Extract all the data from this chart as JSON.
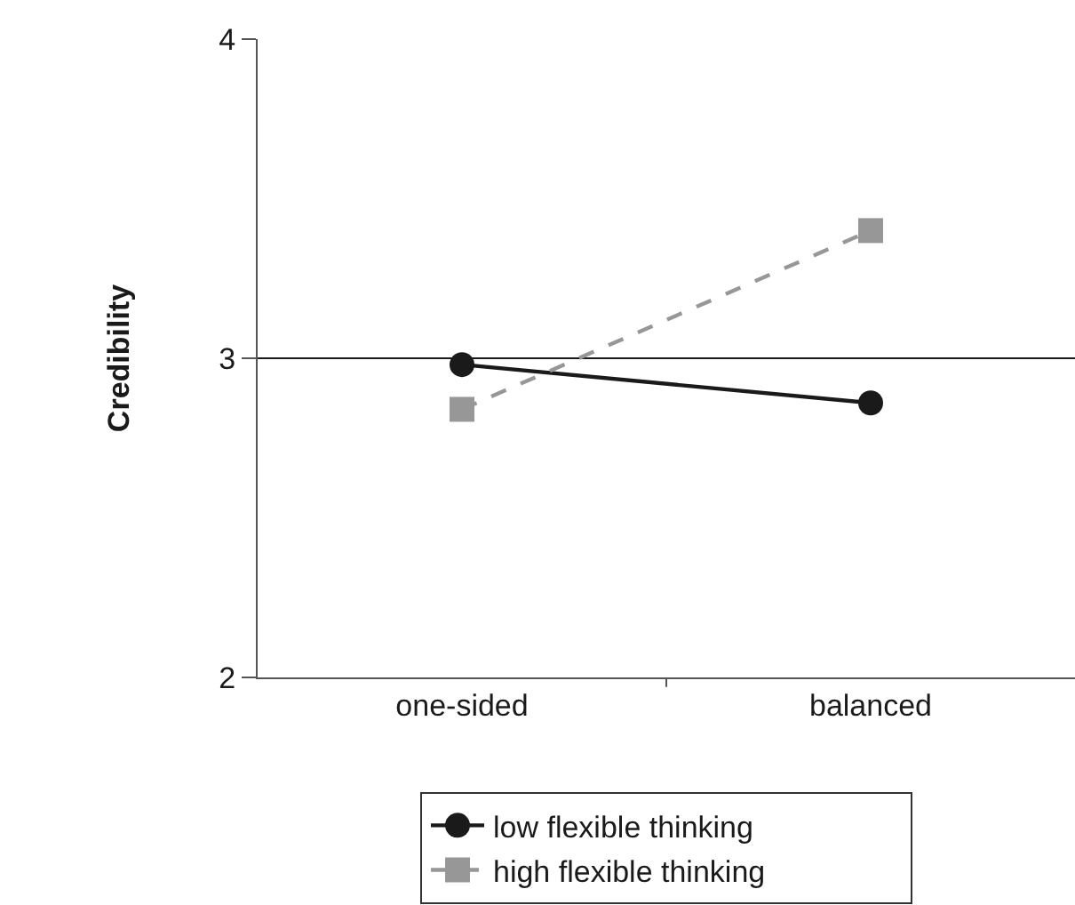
{
  "chart_data": {
    "type": "line",
    "ylabel": "Credibility",
    "categories": [
      "one-sided",
      "balanced"
    ],
    "series": [
      {
        "name": "low flexible thinking",
        "color": "#1a1a1a",
        "values": [
          2.98,
          2.86
        ],
        "marker": "circle",
        "line_style": "solid"
      },
      {
        "name": "high flexible thinking",
        "color": "#979797",
        "values": [
          2.84,
          3.4
        ],
        "marker": "square",
        "line_style": "dashed"
      }
    ],
    "ylim": [
      2,
      4
    ],
    "yticks": [
      2,
      3,
      4
    ],
    "ref_lines": [
      {
        "axis": "y",
        "value": 3,
        "color": "#1a1a1a",
        "line_style": "solid"
      }
    ],
    "legend": "bottom",
    "grid": false
  }
}
